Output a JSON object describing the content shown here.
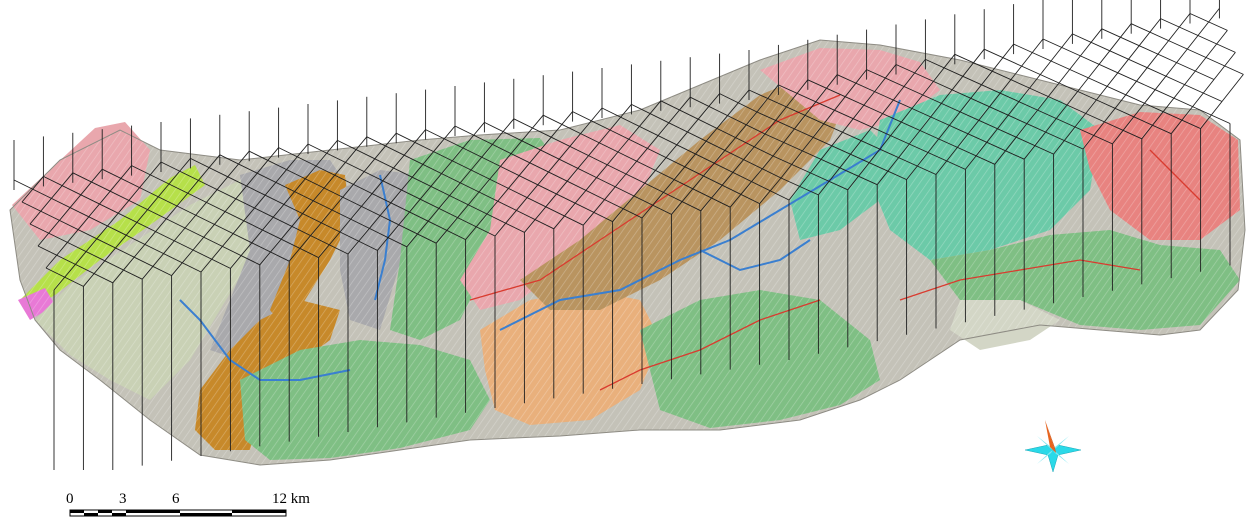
{
  "scale_bar": {
    "labels": [
      "0",
      "3",
      "6",
      "12 km"
    ],
    "ticks_km": [
      0,
      3,
      6,
      12
    ],
    "segments_km": [
      0,
      1.5,
      3,
      4.5,
      6,
      12
    ]
  },
  "compass": {
    "icon": "north-arrow-star-icon",
    "colors": {
      "north": "#e8641e",
      "star": "#2ad9e8"
    }
  },
  "palette": {
    "green": "#7fbf84",
    "teal": "#6ccaa8",
    "pink": "#e9a7ad",
    "salmon": "#e88380",
    "tan": "#b99460",
    "ochre": "#c7892a",
    "orange": "#e9b07c",
    "sage": "#c9d1b5",
    "gray": "#a9a9ac",
    "lime": "#b6e04a",
    "magenta": "#e879d6",
    "terrain": "#c4c2b8",
    "fault": "#d93b2f",
    "river": "#3a7fd0",
    "grid": "#1f1f1f"
  }
}
